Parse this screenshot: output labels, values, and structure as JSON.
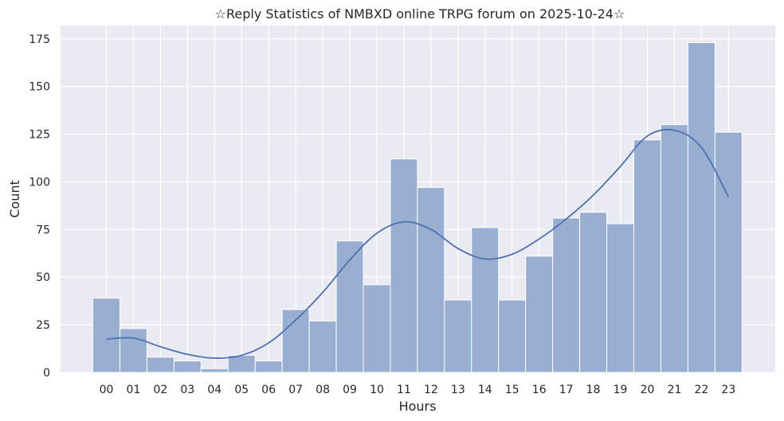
{
  "chart_data": {
    "type": "bar",
    "title": "☆Reply Statistics of NMBXD online TRPG forum on 2025-10-24☆",
    "xlabel": "Hours",
    "ylabel": "Count",
    "categories": [
      "00",
      "01",
      "02",
      "03",
      "04",
      "05",
      "06",
      "07",
      "08",
      "09",
      "10",
      "11",
      "12",
      "13",
      "14",
      "15",
      "16",
      "17",
      "18",
      "19",
      "20",
      "21",
      "22",
      "23"
    ],
    "values": [
      39,
      23,
      8,
      6,
      2,
      9,
      6,
      33,
      27,
      69,
      46,
      112,
      97,
      38,
      76,
      38,
      61,
      81,
      84,
      78,
      122,
      130,
      173,
      126
    ],
    "kde": {
      "x": [
        0,
        1,
        2,
        3,
        4,
        5,
        6,
        7,
        8,
        9,
        10,
        11,
        12,
        13,
        14,
        15,
        16,
        17,
        18,
        19,
        20,
        21,
        22,
        23
      ],
      "y": [
        17.5,
        18,
        13.5,
        9.5,
        7.5,
        9,
        15.5,
        27.5,
        42,
        59,
        73,
        79,
        75,
        65,
        59.5,
        62,
        70,
        80.5,
        93,
        108,
        124,
        127,
        118,
        92
      ]
    },
    "ylim": [
      0,
      182
    ],
    "yticks": [
      0,
      25,
      50,
      75,
      100,
      125,
      150,
      175
    ],
    "grid": true,
    "colors": {
      "background": "#eaeaf2",
      "grid": "#ffffff",
      "bar": "#9aaed2",
      "bar_edge": "#ffffff",
      "line": "#4c72b0",
      "text": "#262626"
    }
  }
}
